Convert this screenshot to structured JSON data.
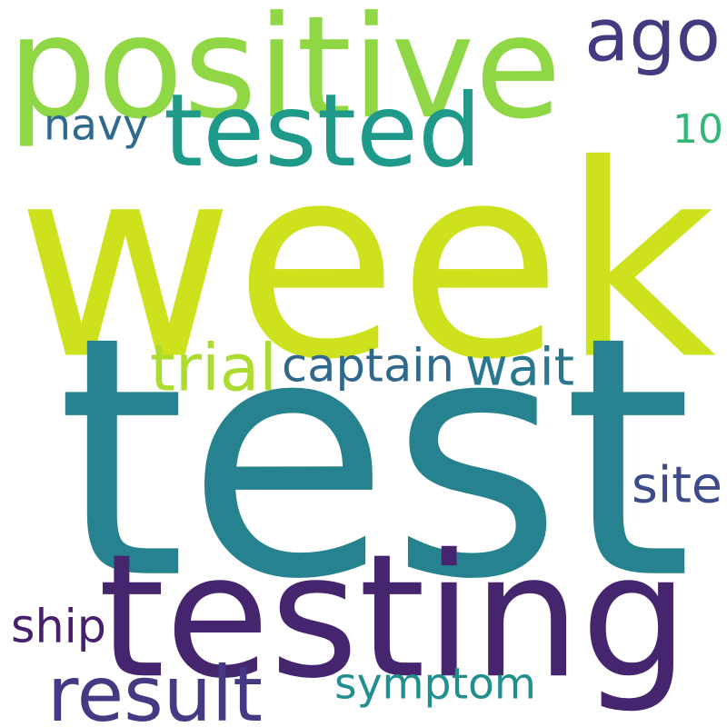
{
  "words": [
    {
      "text": "week",
      "color": "#cde11d"
    },
    {
      "text": "test",
      "color": "#26828e"
    },
    {
      "text": "testing",
      "color": "#46256f"
    },
    {
      "text": "positive",
      "color": "#8fd744"
    },
    {
      "text": "tested",
      "color": "#1f9a8a"
    },
    {
      "text": "ago",
      "color": "#433b80"
    },
    {
      "text": "navy",
      "color": "#2e6a8e"
    },
    {
      "text": "10",
      "color": "#35b779"
    },
    {
      "text": "trial",
      "color": "#addc30"
    },
    {
      "text": "captain",
      "color": "#30688d"
    },
    {
      "text": "wait",
      "color": "#2a788e"
    },
    {
      "text": "site",
      "color": "#3e4a89"
    },
    {
      "text": "ship",
      "color": "#481f6f"
    },
    {
      "text": "result",
      "color": "#443983"
    },
    {
      "text": "symptom",
      "color": "#218f8d"
    }
  ]
}
